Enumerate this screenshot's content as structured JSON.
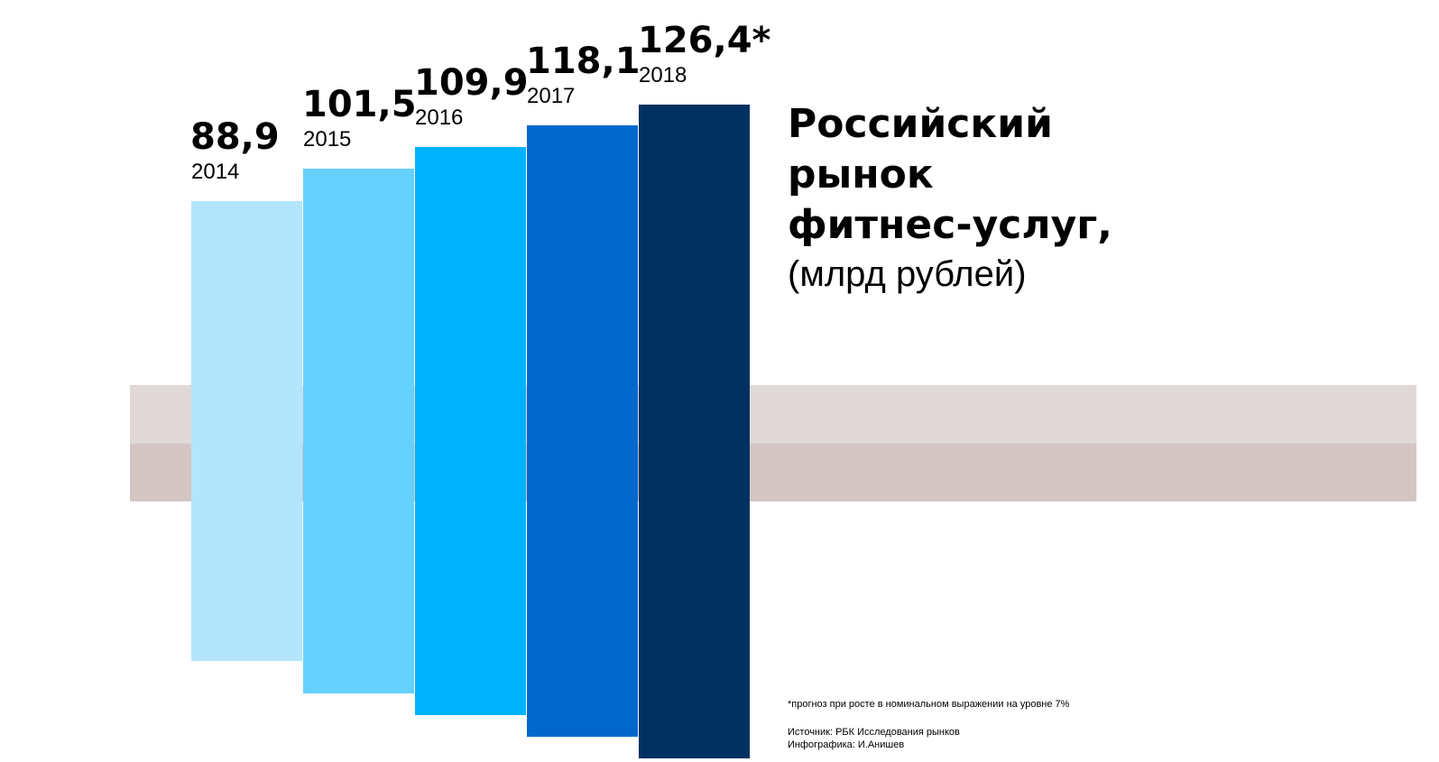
{
  "colors": {
    "background": "#ffffff",
    "band_top": "#dfd8d7",
    "band_bottom": "#d4c5c2",
    "text": "#000000"
  },
  "chart_data": {
    "type": "bar",
    "title": "Российский рынок фитнес-услуг,",
    "title_lines": [
      "Российский",
      "рынок",
      "фитнес-услуг,"
    ],
    "subtitle": "(млрд рублей)",
    "categories": [
      "2014",
      "2015",
      "2016",
      "2017",
      "2018"
    ],
    "values": [
      88.9,
      101.5,
      109.9,
      118.1,
      126.4
    ],
    "value_labels": [
      "88,9",
      "101,5",
      "109,9",
      "118,1",
      "126,4*"
    ],
    "bar_colors": [
      "#b3e5fc",
      "#66d0fe",
      "#00b2fd",
      "#0068cd",
      "#003160"
    ],
    "xlabel": "",
    "ylabel": "",
    "ylim": [
      0,
      126.4
    ],
    "grid": false,
    "legend": "none",
    "orientation": "bars centered on a horizontal band"
  },
  "notes": {
    "footnote": "*прогноз при росте в номинальном выражении на уровне 7%",
    "source": "Источник: РБК Исследования рынков",
    "credit": "Инфографика: И.Анишев"
  }
}
